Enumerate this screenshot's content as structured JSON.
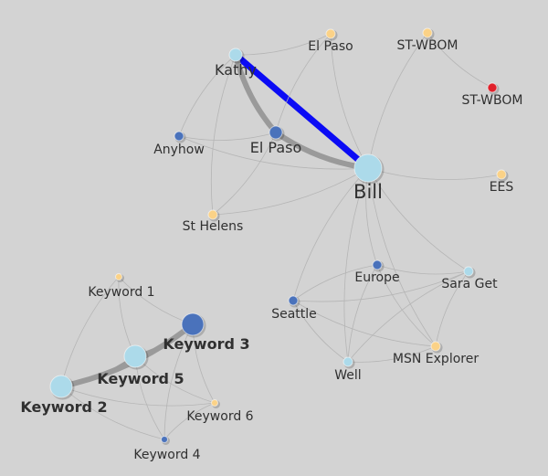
{
  "colors": {
    "background": "#d3d3d3",
    "edge": "#b5b5b5",
    "edge_heavy": "#9a9a9a",
    "highlight": "#0b0bf5",
    "node_light": "#acdaea",
    "node_dark": "#4a72bb",
    "node_yellow": "#fbd287",
    "node_red": "#e0202a"
  },
  "nodes": [
    {
      "id": "kathy",
      "label": "Kathy",
      "kind": "light",
      "size": 2,
      "labelSize": 2
    },
    {
      "id": "elpaso_top",
      "label": "El Paso",
      "kind": "yellow",
      "size": 1,
      "labelSize": 1
    },
    {
      "id": "stwbom1",
      "label": "ST-WBOM",
      "kind": "yellow",
      "size": 1,
      "labelSize": 1
    },
    {
      "id": "stwbom2",
      "label": "ST-WBOM",
      "kind": "red",
      "size": 1,
      "labelSize": 1
    },
    {
      "id": "anyhow",
      "label": "Anyhow",
      "kind": "dark",
      "size": 1,
      "labelSize": 1
    },
    {
      "id": "elpaso_mid",
      "label": "El Paso",
      "kind": "dark",
      "size": 2,
      "labelSize": 2
    },
    {
      "id": "bill",
      "label": "Bill",
      "kind": "light",
      "size": 4,
      "labelSize": 3
    },
    {
      "id": "ees",
      "label": "EES",
      "kind": "yellow",
      "size": 1,
      "labelSize": 1
    },
    {
      "id": "sthelens",
      "label": "St Helens",
      "kind": "yellow",
      "size": 1,
      "labelSize": 1
    },
    {
      "id": "keyword1",
      "label": "Keyword 1",
      "kind": "yellow",
      "size": 0,
      "labelSize": 1
    },
    {
      "id": "keyword3",
      "label": "Keyword 3",
      "kind": "dark",
      "size": 3,
      "labelSize": 2,
      "bold": true
    },
    {
      "id": "keyword5",
      "label": "Keyword 5",
      "kind": "light",
      "size": 3,
      "labelSize": 2,
      "bold": true
    },
    {
      "id": "keyword2",
      "label": "Keyword 2",
      "kind": "light",
      "size": 3,
      "labelSize": 2,
      "bold": true
    },
    {
      "id": "keyword6",
      "label": "Keyword 6",
      "kind": "yellow",
      "size": 0,
      "labelSize": 1
    },
    {
      "id": "keyword4",
      "label": "Keyword 4",
      "kind": "dark",
      "size": 0,
      "labelSize": 1
    },
    {
      "id": "europe",
      "label": "Europe",
      "kind": "dark",
      "size": 1,
      "labelSize": 1
    },
    {
      "id": "saraget",
      "label": "Sara Get",
      "kind": "light",
      "size": 1,
      "labelSize": 1
    },
    {
      "id": "seattle",
      "label": "Seattle",
      "kind": "dark",
      "size": 1,
      "labelSize": 1
    },
    {
      "id": "msn",
      "label": "MSN Explorer",
      "kind": "yellow",
      "size": 1,
      "labelSize": 1
    },
    {
      "id": "well",
      "label": "Well",
      "kind": "light",
      "size": 1,
      "labelSize": 1
    }
  ],
  "edges": [
    {
      "from": "kathy",
      "to": "bill",
      "weight": 3,
      "highlight": true
    },
    {
      "from": "kathy",
      "to": "elpaso_mid",
      "weight": 2
    },
    {
      "from": "elpaso_mid",
      "to": "bill",
      "weight": 2
    },
    {
      "from": "kathy",
      "to": "elpaso_top",
      "weight": 0
    },
    {
      "from": "kathy",
      "to": "anyhow",
      "weight": 0
    },
    {
      "from": "kathy",
      "to": "sthelens",
      "weight": 0
    },
    {
      "from": "elpaso_top",
      "to": "bill",
      "weight": 0
    },
    {
      "from": "elpaso_top",
      "to": "elpaso_mid",
      "weight": 0
    },
    {
      "from": "stwbom1",
      "to": "stwbom2",
      "weight": 0
    },
    {
      "from": "stwbom1",
      "to": "bill",
      "weight": 0
    },
    {
      "from": "anyhow",
      "to": "elpaso_mid",
      "weight": 0
    },
    {
      "from": "anyhow",
      "to": "bill",
      "weight": 0
    },
    {
      "from": "sthelens",
      "to": "elpaso_mid",
      "weight": 0
    },
    {
      "from": "sthelens",
      "to": "bill",
      "weight": 0
    },
    {
      "from": "bill",
      "to": "ees",
      "weight": 0
    },
    {
      "from": "bill",
      "to": "europe",
      "weight": 0
    },
    {
      "from": "bill",
      "to": "saraget",
      "weight": 0
    },
    {
      "from": "bill",
      "to": "seattle",
      "weight": 0
    },
    {
      "from": "bill",
      "to": "well",
      "weight": 0
    },
    {
      "from": "bill",
      "to": "msn",
      "weight": 0
    },
    {
      "from": "europe",
      "to": "seattle",
      "weight": 0
    },
    {
      "from": "europe",
      "to": "saraget",
      "weight": 0
    },
    {
      "from": "europe",
      "to": "well",
      "weight": 0
    },
    {
      "from": "europe",
      "to": "msn",
      "weight": 0
    },
    {
      "from": "seattle",
      "to": "saraget",
      "weight": 0
    },
    {
      "from": "seattle",
      "to": "well",
      "weight": 0
    },
    {
      "from": "seattle",
      "to": "msn",
      "weight": 0
    },
    {
      "from": "saraget",
      "to": "well",
      "weight": 0
    },
    {
      "from": "saraget",
      "to": "msn",
      "weight": 0
    },
    {
      "from": "well",
      "to": "msn",
      "weight": 0
    },
    {
      "from": "keyword2",
      "to": "keyword3",
      "weight": 2
    },
    {
      "from": "keyword2",
      "to": "keyword5",
      "weight": 1
    },
    {
      "from": "keyword5",
      "to": "keyword3",
      "weight": 1
    },
    {
      "from": "keyword1",
      "to": "keyword3",
      "weight": 0
    },
    {
      "from": "keyword1",
      "to": "keyword5",
      "weight": 0
    },
    {
      "from": "keyword1",
      "to": "keyword2",
      "weight": 0
    },
    {
      "from": "keyword2",
      "to": "keyword6",
      "weight": 0
    },
    {
      "from": "keyword2",
      "to": "keyword4",
      "weight": 0
    },
    {
      "from": "keyword5",
      "to": "keyword6",
      "weight": 0
    },
    {
      "from": "keyword5",
      "to": "keyword4",
      "weight": 0
    },
    {
      "from": "keyword3",
      "to": "keyword6",
      "weight": 0
    },
    {
      "from": "keyword3",
      "to": "keyword4",
      "weight": 0
    },
    {
      "from": "keyword6",
      "to": "keyword4",
      "weight": 0
    }
  ]
}
